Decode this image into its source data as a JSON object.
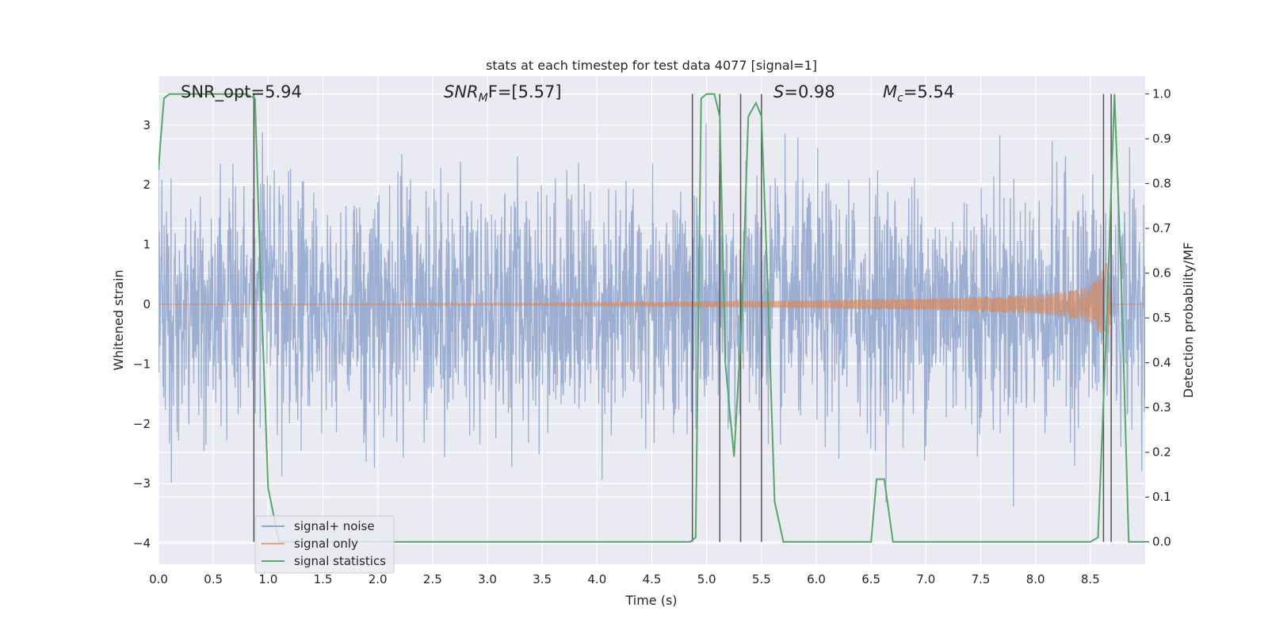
{
  "chart_data": {
    "type": "line",
    "title": "stats at each timestep for test data 4077 [signal=1]",
    "xlabel": "Time (s)",
    "ylabel_left": "Whitened strain",
    "ylabel_right": "Detection probability/MF",
    "xlim": [
      0.0,
      9.0
    ],
    "ylim_left": [
      -4.35,
      3.82
    ],
    "ylim_right": [
      -0.05,
      1.04
    ],
    "x_ticks": [
      "0.0",
      "0.5",
      "1.0",
      "1.5",
      "2.0",
      "2.5",
      "3.0",
      "3.5",
      "4.0",
      "4.5",
      "5.0",
      "5.5",
      "6.0",
      "6.5",
      "7.0",
      "7.5",
      "8.0",
      "8.5"
    ],
    "y_ticks_left": [
      "−4",
      "−3",
      "−2",
      "−1",
      "0",
      "1",
      "2",
      "3"
    ],
    "y_ticks_right": [
      "0.0",
      "0.1",
      "0.2",
      "0.3",
      "0.4",
      "0.5",
      "0.6",
      "0.7",
      "0.8",
      "0.9",
      "1.0"
    ],
    "grid": true,
    "legend_position": "lower-left",
    "colors": {
      "background": "#eaeaf2",
      "grid": "#ffffff",
      "noise": "#8ea3cd",
      "signal": "#dd8452",
      "statistics": "#55a868",
      "markers": "#555555"
    },
    "annotations": {
      "snr_opt": "SNR_opt=5.94",
      "snr_mf_prefix": "SNR",
      "snr_mf_sub": "M",
      "snr_mf_suffix": "F=[5.57]",
      "s_label": "S",
      "s_value": "=0.98",
      "mc_label": "M",
      "mc_sub": "c",
      "mc_value": "=5.54"
    },
    "series": [
      {
        "name": "signal+ noise",
        "axis": "left",
        "style": "noise",
        "description_values": {
          "sigma": 1.0,
          "y_min": -3.85,
          "y_max": 3.3
        }
      },
      {
        "name": "signal only",
        "axis": "left",
        "style": "chirp",
        "envelope": {
          "x": [
            0.0,
            3.5,
            5.0,
            6.0,
            7.0,
            8.0,
            8.4,
            8.55,
            8.65,
            8.7
          ],
          "amp": [
            0.0,
            0.02,
            0.05,
            0.07,
            0.1,
            0.16,
            0.25,
            0.4,
            0.7,
            0.0
          ]
        }
      },
      {
        "name": "signal statistics",
        "axis": "right",
        "x": [
          0.0,
          0.02,
          0.05,
          0.1,
          0.2,
          0.3,
          0.4,
          0.5,
          0.6,
          0.7,
          0.8,
          0.88,
          0.93,
          1.0,
          1.1,
          1.2,
          1.5,
          2.0,
          2.5,
          3.0,
          3.2,
          3.5,
          4.0,
          4.5,
          4.85,
          4.9,
          4.95,
          5.0,
          5.07,
          5.12,
          5.17,
          5.25,
          5.32,
          5.38,
          5.45,
          5.5,
          5.55,
          5.62,
          5.7,
          5.8,
          6.0,
          6.5,
          6.55,
          6.62,
          6.7,
          7.0,
          8.0,
          8.5,
          8.57,
          8.65,
          8.72,
          8.78,
          8.85,
          9.0
        ],
        "y": [
          0.83,
          0.9,
          0.99,
          1.0,
          1.0,
          1.0,
          1.0,
          1.0,
          1.0,
          1.0,
          1.0,
          0.99,
          0.6,
          0.12,
          0.0,
          0.0,
          0.0,
          0.0,
          0.0,
          0.0,
          0.0,
          0.0,
          0.0,
          0.0,
          0.0,
          0.01,
          0.99,
          1.0,
          1.0,
          0.95,
          0.4,
          0.19,
          0.5,
          0.95,
          0.98,
          0.95,
          0.62,
          0.09,
          0.0,
          0.0,
          0.0,
          0.0,
          0.14,
          0.14,
          0.0,
          0.0,
          0.0,
          0.0,
          0.01,
          0.5,
          1.0,
          0.6,
          0.0,
          0.0
        ]
      }
    ],
    "vertical_lines_x": [
      0.87,
      4.87,
      5.12,
      5.31,
      5.5,
      8.62,
      8.69
    ]
  }
}
